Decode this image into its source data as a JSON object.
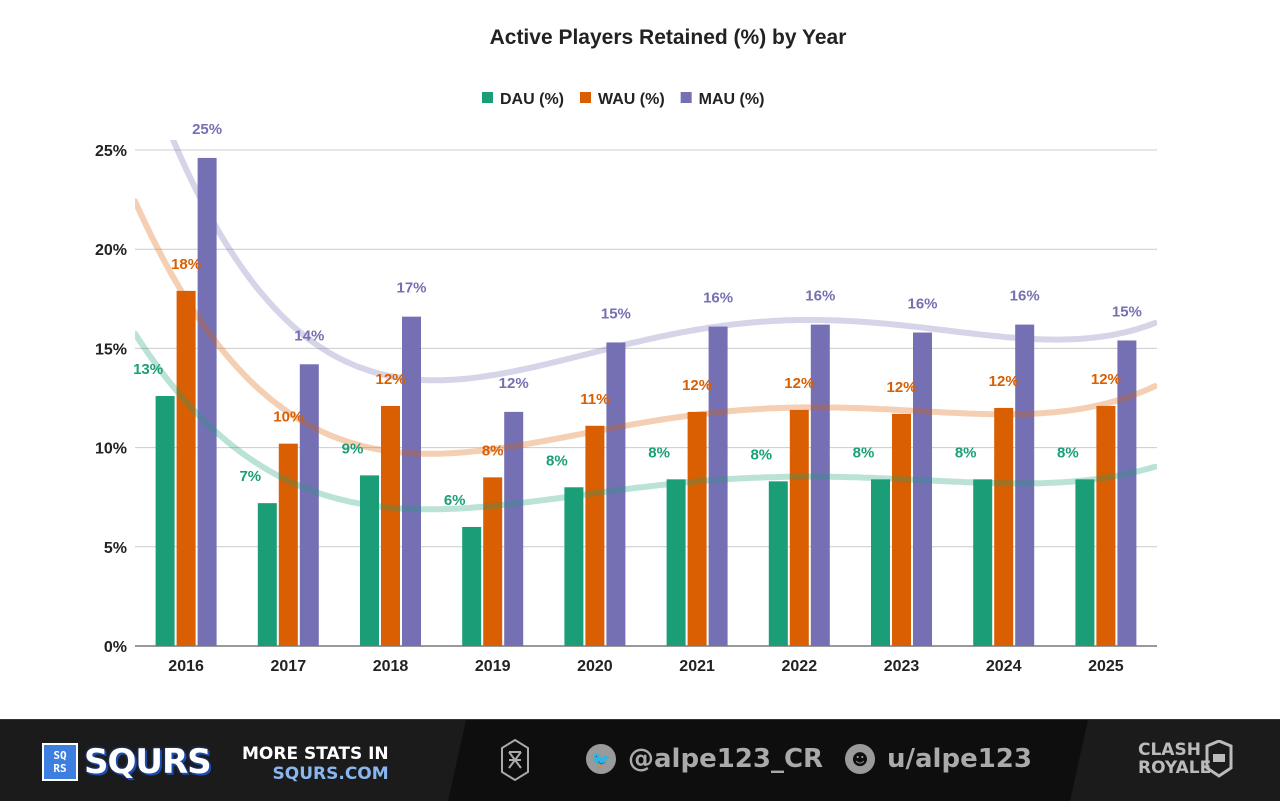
{
  "chart_data": {
    "type": "bar",
    "title": "Active Players Retained (%) by Year",
    "categories": [
      "2016",
      "2017",
      "2018",
      "2019",
      "2020",
      "2021",
      "2022",
      "2023",
      "2024",
      "2025"
    ],
    "series": [
      {
        "name": "DAU (%)",
        "color": "#1b9e77",
        "values": [
          12.6,
          7.2,
          8.6,
          6.0,
          8.0,
          8.4,
          8.3,
          8.4,
          8.4,
          8.4
        ],
        "labels": [
          "13%",
          "7%",
          "9%",
          "6%",
          "8%",
          "8%",
          "8%",
          "8%",
          "8%",
          "8%"
        ]
      },
      {
        "name": "WAU (%)",
        "color": "#d95f02",
        "values": [
          17.9,
          10.2,
          12.1,
          8.5,
          11.1,
          11.8,
          11.9,
          11.7,
          12.0,
          12.1
        ],
        "labels": [
          "18%",
          "10%",
          "12%",
          "8%",
          "11%",
          "12%",
          "12%",
          "12%",
          "12%",
          "12%"
        ]
      },
      {
        "name": "MAU (%)",
        "color": "#7570b3",
        "values": [
          24.6,
          14.2,
          16.6,
          11.8,
          15.3,
          16.1,
          16.2,
          15.8,
          16.2,
          15.4
        ],
        "labels": [
          "25%",
          "14%",
          "17%",
          "12%",
          "15%",
          "16%",
          "16%",
          "16%",
          "16%",
          "15%"
        ]
      }
    ],
    "ylim": [
      0,
      25
    ],
    "yticks": [
      "0%",
      "5%",
      "10%",
      "15%",
      "20%",
      "25%"
    ],
    "grid": true,
    "legend": "top",
    "trendlines": "polynomial",
    "xlabel": "",
    "ylabel": ""
  },
  "footer": {
    "brand_box": "SQ RS",
    "brand": "SQURS",
    "more_line1": "MORE STATS IN",
    "more_line2": "SQURS.COM",
    "twitter": "@alpe123_CR",
    "reddit": "u/alpe123",
    "game_logo": "CLASH ROYALE"
  }
}
